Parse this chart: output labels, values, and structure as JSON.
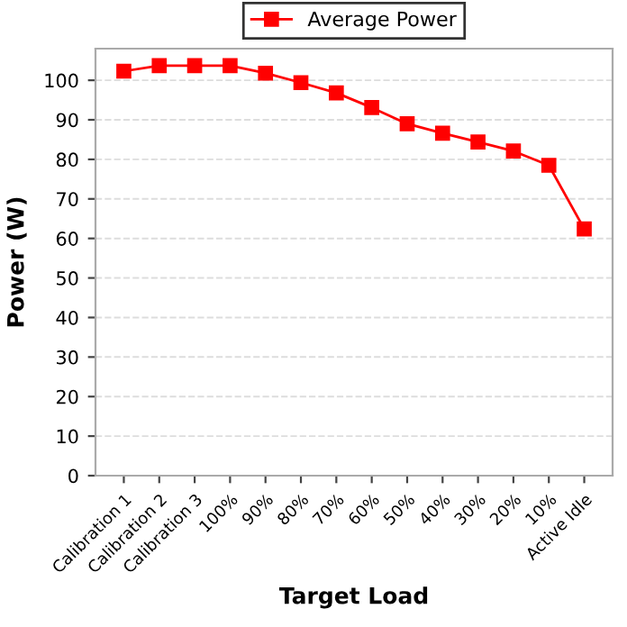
{
  "chart_data": {
    "type": "line",
    "xlabel": "Target Load",
    "ylabel": "Power (W)",
    "categories": [
      "Calibration 1",
      "Calibration 2",
      "Calibration 3",
      "100%",
      "90%",
      "80%",
      "70%",
      "60%",
      "50%",
      "40%",
      "30%",
      "20%",
      "10%",
      "Active Idle"
    ],
    "series": [
      {
        "name": "Average Power",
        "color": "#ff0000",
        "values": [
          102.3,
          103.7,
          103.7,
          103.7,
          101.8,
          99.4,
          96.8,
          93.1,
          89.0,
          86.6,
          84.4,
          82.1,
          78.5,
          62.4
        ]
      }
    ],
    "ylim": [
      0,
      108
    ],
    "yticks": [
      0,
      10,
      20,
      30,
      40,
      50,
      60,
      70,
      80,
      90,
      100
    ],
    "grid": "y",
    "legend": "top",
    "marker": "square",
    "line_style": "solid"
  }
}
